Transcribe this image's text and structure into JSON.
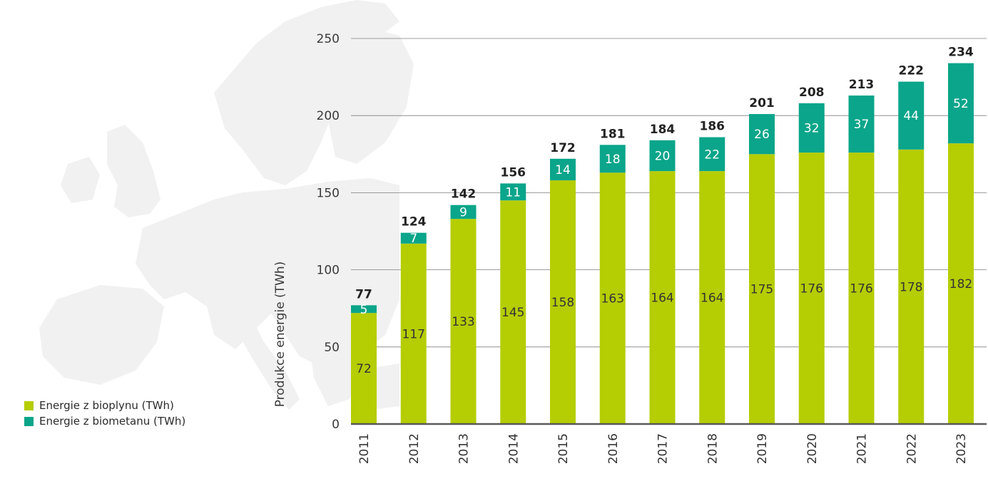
{
  "colors": {
    "bioplyn": "#b5cd03",
    "biometan": "#0aa58a",
    "grid": "#7f7f7f",
    "axis": "#595959",
    "map": "#f1f1f1"
  },
  "legend": {
    "items": [
      {
        "label": "Energie z bioplynu (TWh)",
        "color": "#b5cd03"
      },
      {
        "label": "Energie z biometanu (TWh)",
        "color": "#0aa58a"
      }
    ]
  },
  "chart_data": {
    "type": "bar",
    "stacked": true,
    "title": "",
    "xlabel": "",
    "ylabel": "Produkce energie (TWh)",
    "ylim": [
      0,
      250
    ],
    "yticks": [
      0,
      50,
      100,
      150,
      200,
      250
    ],
    "grid": true,
    "legend_position": "bottom-left",
    "categories": [
      "2011",
      "2012",
      "2013",
      "2014",
      "2015",
      "2016",
      "2017",
      "2018",
      "2019",
      "2020",
      "2021",
      "2022",
      "2023"
    ],
    "series": [
      {
        "name": "Energie z bioplynu (TWh)",
        "values": [
          72,
          117,
          133,
          145,
          158,
          163,
          164,
          164,
          175,
          176,
          176,
          178,
          182
        ]
      },
      {
        "name": "Energie z biometanu (TWh)",
        "values": [
          5,
          7,
          9,
          11,
          14,
          18,
          20,
          22,
          26,
          32,
          37,
          44,
          52
        ]
      }
    ],
    "totals": [
      77,
      124,
      142,
      156,
      172,
      181,
      184,
      186,
      201,
      208,
      213,
      222,
      234
    ]
  }
}
